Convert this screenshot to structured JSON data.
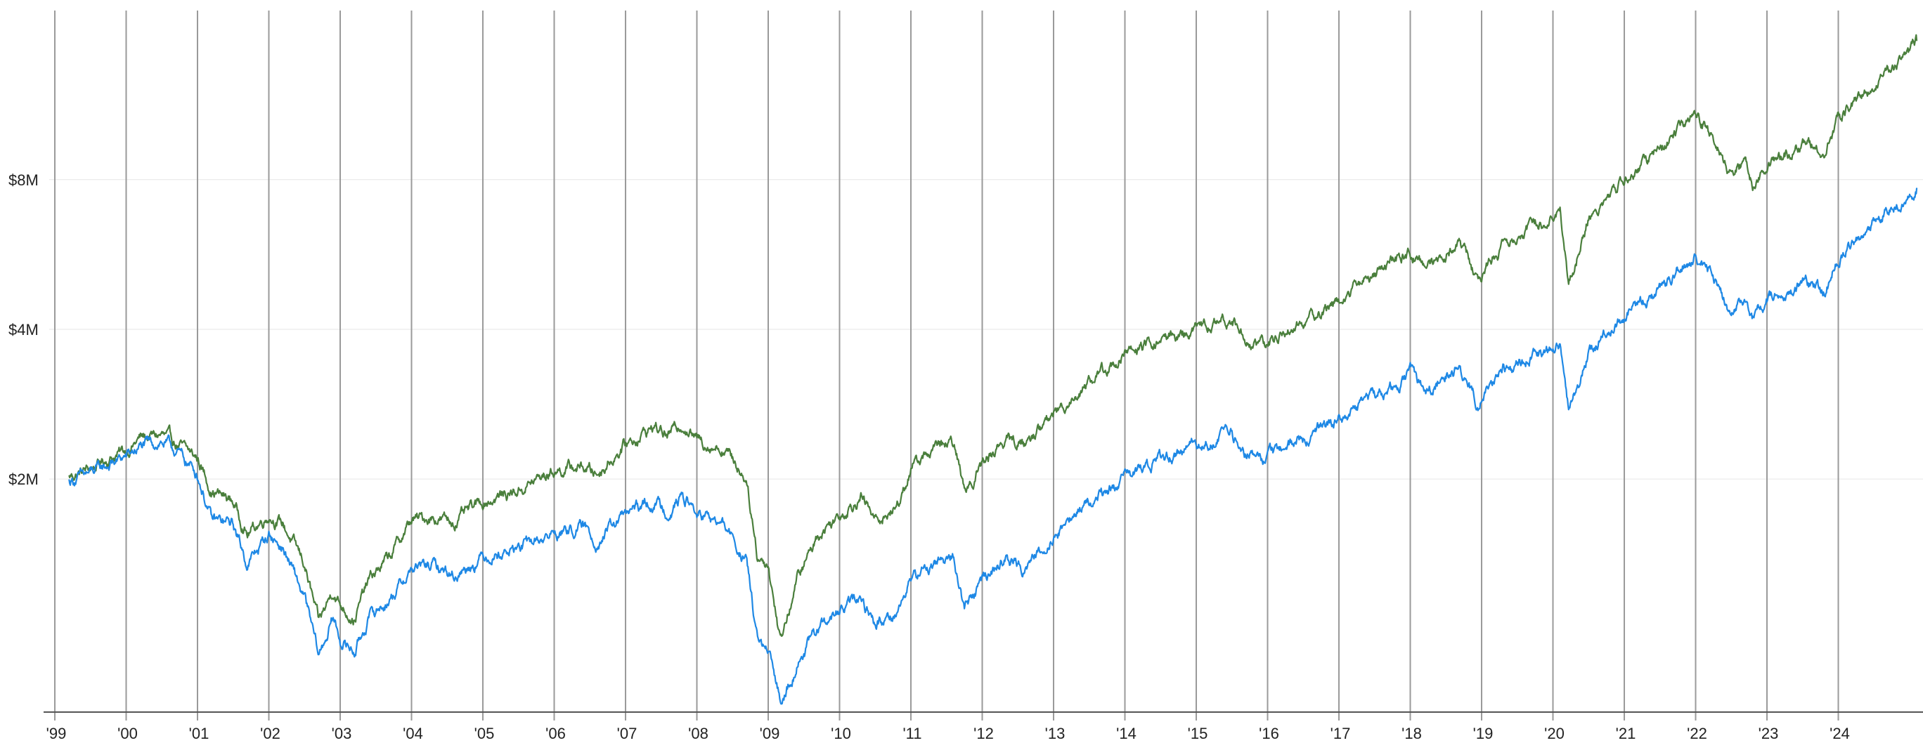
{
  "chart_data": {
    "type": "line",
    "title": "",
    "xlabel": "",
    "ylabel": "",
    "x_tick_labels": [
      "'99",
      "'00",
      "'01",
      "'02",
      "'03",
      "'04",
      "'05",
      "'06",
      "'07",
      "'08",
      "'09",
      "'10",
      "'11",
      "'12",
      "'13",
      "'14",
      "'15",
      "'16",
      "'17",
      "'18",
      "'19",
      "'20",
      "'21",
      "'22",
      "'23",
      "'24"
    ],
    "y_ticks": [
      {
        "label": "$2M",
        "value": 2
      },
      {
        "label": "$4M",
        "value": 4
      },
      {
        "label": "$8M",
        "value": 8
      }
    ],
    "y_scale": "log",
    "ylim": [
      0.68,
      17.5
    ],
    "xlim": [
      1999.0,
      2025.3
    ],
    "grid_vertical": true,
    "grid_horizontal": true,
    "legend": "none",
    "series": [
      {
        "color": "#4a7f3c",
        "points": [
          [
            1999.2,
            2.02
          ],
          [
            1999.5,
            2.1
          ],
          [
            1999.8,
            2.22
          ],
          [
            2000.0,
            2.28
          ],
          [
            2000.2,
            2.42
          ],
          [
            2000.5,
            2.45
          ],
          [
            2000.7,
            2.35
          ],
          [
            2001.0,
            2.2
          ],
          [
            2001.2,
            1.9
          ],
          [
            2001.5,
            1.8
          ],
          [
            2001.7,
            1.55
          ],
          [
            2002.0,
            1.7
          ],
          [
            2002.2,
            1.62
          ],
          [
            2002.5,
            1.35
          ],
          [
            2002.7,
            1.02
          ],
          [
            2002.9,
            1.2
          ],
          [
            2003.0,
            1.12
          ],
          [
            2003.2,
            1.05
          ],
          [
            2003.4,
            1.25
          ],
          [
            2003.7,
            1.4
          ],
          [
            2004.0,
            1.65
          ],
          [
            2004.3,
            1.68
          ],
          [
            2004.6,
            1.64
          ],
          [
            2005.0,
            1.8
          ],
          [
            2005.5,
            1.9
          ],
          [
            2006.0,
            2.08
          ],
          [
            2006.4,
            2.12
          ],
          [
            2006.6,
            2.05
          ],
          [
            2007.0,
            2.35
          ],
          [
            2007.4,
            2.55
          ],
          [
            2007.6,
            2.45
          ],
          [
            2007.8,
            2.6
          ],
          [
            2008.0,
            2.4
          ],
          [
            2008.4,
            2.3
          ],
          [
            2008.7,
            2.0
          ],
          [
            2008.85,
            1.4
          ],
          [
            2009.0,
            1.35
          ],
          [
            2009.17,
            0.95
          ],
          [
            2009.4,
            1.25
          ],
          [
            2009.7,
            1.55
          ],
          [
            2010.0,
            1.7
          ],
          [
            2010.3,
            1.85
          ],
          [
            2010.5,
            1.65
          ],
          [
            2010.8,
            1.75
          ],
          [
            2011.0,
            2.1
          ],
          [
            2011.3,
            2.3
          ],
          [
            2011.6,
            2.35
          ],
          [
            2011.75,
            1.9
          ],
          [
            2012.0,
            2.15
          ],
          [
            2012.3,
            2.4
          ],
          [
            2012.6,
            2.35
          ],
          [
            2013.0,
            2.7
          ],
          [
            2013.5,
            3.15
          ],
          [
            2014.0,
            3.55
          ],
          [
            2014.5,
            3.8
          ],
          [
            2015.0,
            4.0
          ],
          [
            2015.5,
            4.2
          ],
          [
            2015.7,
            3.8
          ],
          [
            2016.0,
            3.7
          ],
          [
            2016.2,
            3.95
          ],
          [
            2016.6,
            4.2
          ],
          [
            2017.0,
            4.6
          ],
          [
            2017.5,
            5.2
          ],
          [
            2018.0,
            5.7
          ],
          [
            2018.2,
            5.35
          ],
          [
            2018.7,
            6.0
          ],
          [
            2018.95,
            5.0
          ],
          [
            2019.3,
            6.0
          ],
          [
            2019.7,
            6.4
          ],
          [
            2020.1,
            7.0
          ],
          [
            2020.22,
            4.9
          ],
          [
            2020.5,
            6.7
          ],
          [
            2020.9,
            7.7
          ],
          [
            2021.3,
            8.7
          ],
          [
            2021.7,
            9.8
          ],
          [
            2022.0,
            10.8
          ],
          [
            2022.3,
            9.3
          ],
          [
            2022.45,
            8.3
          ],
          [
            2022.7,
            8.7
          ],
          [
            2022.8,
            7.8
          ],
          [
            2023.0,
            8.6
          ],
          [
            2023.5,
            9.5
          ],
          [
            2023.8,
            9.1
          ],
          [
            2024.0,
            10.6
          ],
          [
            2024.4,
            12.0
          ],
          [
            2024.7,
            13.3
          ],
          [
            2025.0,
            14.3
          ],
          [
            2025.1,
            15.2
          ]
        ]
      },
      {
        "color": "#1e88e5",
        "points": [
          [
            1999.2,
            1.98
          ],
          [
            1999.5,
            2.05
          ],
          [
            1999.8,
            2.15
          ],
          [
            2000.0,
            2.22
          ],
          [
            2000.2,
            2.32
          ],
          [
            2000.5,
            2.38
          ],
          [
            2000.7,
            2.28
          ],
          [
            2001.0,
            2.05
          ],
          [
            2001.2,
            1.65
          ],
          [
            2001.5,
            1.62
          ],
          [
            2001.7,
            1.35
          ],
          [
            2002.0,
            1.55
          ],
          [
            2002.2,
            1.45
          ],
          [
            2002.5,
            1.15
          ],
          [
            2002.7,
            0.88
          ],
          [
            2002.9,
            1.05
          ],
          [
            2003.0,
            0.95
          ],
          [
            2003.2,
            0.9
          ],
          [
            2003.4,
            1.05
          ],
          [
            2003.7,
            1.15
          ],
          [
            2004.0,
            1.32
          ],
          [
            2004.3,
            1.34
          ],
          [
            2004.6,
            1.28
          ],
          [
            2005.0,
            1.4
          ],
          [
            2005.5,
            1.45
          ],
          [
            2006.0,
            1.55
          ],
          [
            2006.4,
            1.6
          ],
          [
            2006.6,
            1.5
          ],
          [
            2007.0,
            1.7
          ],
          [
            2007.4,
            1.8
          ],
          [
            2007.6,
            1.72
          ],
          [
            2007.8,
            1.85
          ],
          [
            2008.0,
            1.7
          ],
          [
            2008.4,
            1.6
          ],
          [
            2008.7,
            1.35
          ],
          [
            2008.85,
            0.95
          ],
          [
            2009.0,
            0.88
          ],
          [
            2009.17,
            0.72
          ],
          [
            2009.4,
            0.85
          ],
          [
            2009.7,
            1.0
          ],
          [
            2010.0,
            1.08
          ],
          [
            2010.3,
            1.15
          ],
          [
            2010.5,
            1.02
          ],
          [
            2010.8,
            1.08
          ],
          [
            2011.0,
            1.25
          ],
          [
            2011.3,
            1.35
          ],
          [
            2011.6,
            1.4
          ],
          [
            2011.75,
            1.1
          ],
          [
            2012.0,
            1.25
          ],
          [
            2012.3,
            1.38
          ],
          [
            2012.6,
            1.32
          ],
          [
            2013.0,
            1.55
          ],
          [
            2013.5,
            1.8
          ],
          [
            2014.0,
            2.0
          ],
          [
            2014.5,
            2.2
          ],
          [
            2015.0,
            2.35
          ],
          [
            2015.5,
            2.45
          ],
          [
            2015.7,
            2.25
          ],
          [
            2016.0,
            2.2
          ],
          [
            2016.2,
            2.3
          ],
          [
            2016.6,
            2.45
          ],
          [
            2017.0,
            2.65
          ],
          [
            2017.5,
            2.95
          ],
          [
            2018.0,
            3.25
          ],
          [
            2018.2,
            3.0
          ],
          [
            2018.7,
            3.4
          ],
          [
            2018.95,
            2.85
          ],
          [
            2019.3,
            3.3
          ],
          [
            2019.7,
            3.5
          ],
          [
            2020.1,
            3.8
          ],
          [
            2020.22,
            2.7
          ],
          [
            2020.5,
            3.6
          ],
          [
            2020.9,
            4.1
          ],
          [
            2021.3,
            4.6
          ],
          [
            2021.7,
            5.2
          ],
          [
            2022.0,
            5.7
          ],
          [
            2022.3,
            4.9
          ],
          [
            2022.45,
            4.4
          ],
          [
            2022.7,
            4.6
          ],
          [
            2022.8,
            4.2
          ],
          [
            2023.0,
            4.6
          ],
          [
            2023.5,
            5.0
          ],
          [
            2023.8,
            4.8
          ],
          [
            2024.0,
            5.6
          ],
          [
            2024.4,
            6.3
          ],
          [
            2024.7,
            7.0
          ],
          [
            2025.0,
            7.4
          ],
          [
            2025.1,
            7.7
          ]
        ]
      }
    ]
  }
}
